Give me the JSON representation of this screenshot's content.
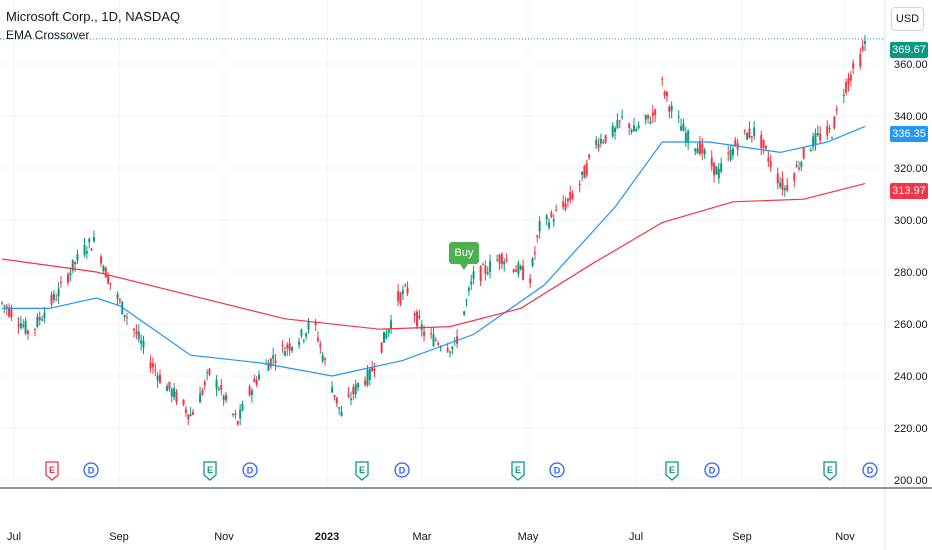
{
  "header": {
    "title": "Microsoft Corp., 1D, NASDAQ",
    "indicator": "EMA Crossover"
  },
  "currency_button": "USD",
  "price_labels": {
    "last": {
      "value": "369.67",
      "color": "#089981"
    },
    "ema_fast": {
      "value": "336.35",
      "color": "#2196f3"
    },
    "ema_slow": {
      "value": "313.97",
      "color": "#f23645"
    }
  },
  "signal": {
    "label": "Buy",
    "color": "#4caf50"
  },
  "colors": {
    "up": "#089981",
    "down": "#f23645",
    "ema_fast": "#2196f3",
    "ema_slow": "#f23645",
    "grid": "#f0f3fa",
    "text": "#131722"
  },
  "events": [
    {
      "type": "E",
      "color": "#f23645",
      "x_month": "Jul-end"
    },
    {
      "type": "D",
      "color": "#2962ff"
    },
    {
      "type": "E",
      "color": "#089981"
    },
    {
      "type": "D",
      "color": "#2962ff"
    },
    {
      "type": "E",
      "color": "#089981"
    },
    {
      "type": "D",
      "color": "#2962ff"
    },
    {
      "type": "E",
      "color": "#089981"
    },
    {
      "type": "D",
      "color": "#2962ff"
    },
    {
      "type": "E",
      "color": "#089981"
    },
    {
      "type": "D",
      "color": "#2962ff"
    },
    {
      "type": "E",
      "color": "#089981"
    },
    {
      "type": "D",
      "color": "#2962ff"
    }
  ],
  "chart_data": {
    "type": "candlestick",
    "title": "Microsoft Corp., 1D, NASDAQ",
    "y_ticks": [
      "200.00",
      "220.00",
      "240.00",
      "260.00",
      "280.00",
      "300.00",
      "320.00",
      "340.00",
      "360.00"
    ],
    "ylim": [
      196,
      374
    ],
    "x_ticks": [
      {
        "label": "Jul",
        "bold": false
      },
      {
        "label": "Sep",
        "bold": false
      },
      {
        "label": "Nov",
        "bold": false
      },
      {
        "label": "2023",
        "bold": true
      },
      {
        "label": "Mar",
        "bold": false
      },
      {
        "label": "May",
        "bold": false
      },
      {
        "label": "Jul",
        "bold": false
      },
      {
        "label": "Sep",
        "bold": false
      },
      {
        "label": "Nov",
        "bold": false
      }
    ],
    "price_trend": [
      [
        0,
        268
      ],
      [
        6,
        263
      ],
      [
        12,
        256
      ],
      [
        18,
        265
      ],
      [
        24,
        272
      ],
      [
        30,
        282
      ],
      [
        36,
        290
      ],
      [
        40,
        292
      ],
      [
        44,
        280
      ],
      [
        50,
        268
      ],
      [
        56,
        258
      ],
      [
        62,
        247
      ],
      [
        68,
        238
      ],
      [
        74,
        232
      ],
      [
        80,
        225
      ],
      [
        84,
        232
      ],
      [
        88,
        241
      ],
      [
        92,
        236
      ],
      [
        96,
        228
      ],
      [
        100,
        222
      ],
      [
        104,
        232
      ],
      [
        110,
        242
      ],
      [
        116,
        248
      ],
      [
        122,
        252
      ],
      [
        128,
        256
      ],
      [
        132,
        262
      ],
      [
        136,
        248
      ],
      [
        140,
        236
      ],
      [
        144,
        225
      ],
      [
        148,
        232
      ],
      [
        152,
        238
      ],
      [
        156,
        240
      ],
      [
        160,
        250
      ],
      [
        164,
        258
      ],
      [
        168,
        270
      ],
      [
        172,
        273
      ],
      [
        176,
        262
      ],
      [
        180,
        255
      ],
      [
        184,
        254
      ],
      [
        188,
        252
      ],
      [
        192,
        251
      ],
      [
        196,
        265
      ],
      [
        200,
        278
      ],
      [
        204,
        280
      ],
      [
        208,
        283
      ],
      [
        212,
        286
      ],
      [
        216,
        283
      ],
      [
        220,
        280
      ],
      [
        224,
        278
      ],
      [
        228,
        297
      ],
      [
        232,
        300
      ],
      [
        236,
        303
      ],
      [
        240,
        307
      ],
      [
        244,
        312
      ],
      [
        248,
        320
      ],
      [
        252,
        330
      ],
      [
        256,
        332
      ],
      [
        260,
        334
      ],
      [
        264,
        340
      ],
      [
        268,
        334
      ],
      [
        272,
        337
      ],
      [
        276,
        340
      ],
      [
        280,
        352
      ],
      [
        284,
        342
      ],
      [
        288,
        336
      ],
      [
        292,
        330
      ],
      [
        296,
        328
      ],
      [
        300,
        322
      ],
      [
        304,
        318
      ],
      [
        308,
        324
      ],
      [
        312,
        330
      ],
      [
        316,
        333
      ],
      [
        320,
        334
      ],
      [
        324,
        326
      ],
      [
        328,
        318
      ],
      [
        332,
        312
      ],
      [
        336,
        318
      ],
      [
        340,
        325
      ],
      [
        344,
        330
      ],
      [
        348,
        333
      ],
      [
        352,
        334
      ],
      [
        356,
        348
      ],
      [
        360,
        356
      ],
      [
        364,
        362
      ],
      [
        366,
        368
      ]
    ],
    "series": [
      {
        "name": "",
        "type": "line",
        "color": "#2196f3",
        "points": [
          [
            0,
            266
          ],
          [
            20,
            266
          ],
          [
            40,
            270
          ],
          [
            50,
            267
          ],
          [
            80,
            248
          ],
          [
            110,
            245
          ],
          [
            140,
            240
          ],
          [
            170,
            246
          ],
          [
            200,
            256
          ],
          [
            230,
            275
          ],
          [
            260,
            305
          ],
          [
            280,
            330
          ],
          [
            300,
            330
          ],
          [
            330,
            326
          ],
          [
            350,
            330
          ],
          [
            366,
            336
          ]
        ]
      },
      {
        "name": "",
        "type": "line",
        "color": "#f23645",
        "points": [
          [
            0,
            285
          ],
          [
            40,
            280
          ],
          [
            80,
            271
          ],
          [
            120,
            262
          ],
          [
            160,
            258
          ],
          [
            190,
            259
          ],
          [
            220,
            266
          ],
          [
            250,
            283
          ],
          [
            280,
            299
          ],
          [
            310,
            307
          ],
          [
            340,
            308
          ],
          [
            366,
            314
          ]
        ]
      }
    ],
    "last_price": 369.67
  }
}
